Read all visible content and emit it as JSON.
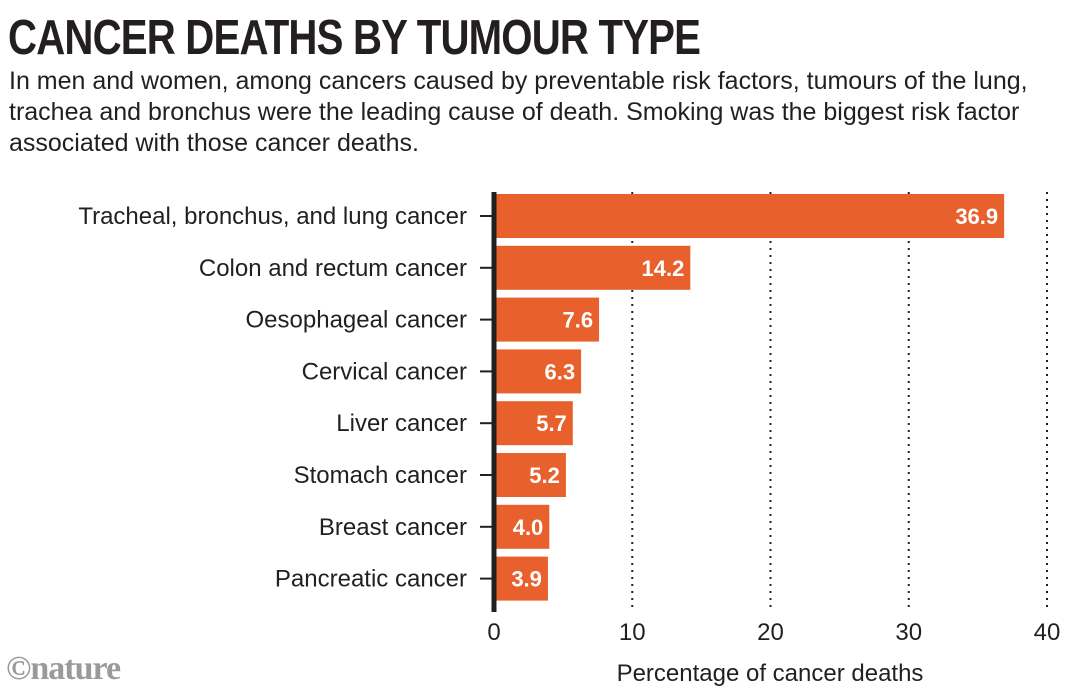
{
  "chart_data": {
    "type": "bar",
    "orientation": "horizontal",
    "title": "CANCER DEATHS BY TUMOUR TYPE",
    "subtitle": "In men and women, among cancers caused by preventable risk factors, tumours of the lung, trachea and bronchus were the leading cause of death. Smoking was the biggest risk factor associated with those cancer deaths.",
    "categories": [
      "Tracheal, bronchus, and lung cancer",
      "Colon and rectum cancer",
      "Oesophageal cancer",
      "Cervical cancer",
      "Liver cancer",
      "Stomach cancer",
      "Breast cancer",
      "Pancreatic cancer"
    ],
    "values": [
      36.9,
      14.2,
      7.6,
      6.3,
      5.7,
      5.2,
      4.0,
      3.9
    ],
    "value_labels": [
      "36.9",
      "14.2",
      "7.6",
      "6.3",
      "5.7",
      "5.2",
      "4.0",
      "3.9"
    ],
    "xlabel": "Percentage of cancer deaths",
    "ylabel": "",
    "xlim": [
      0,
      40
    ],
    "xticks": [
      0,
      10,
      20,
      30,
      40
    ],
    "xtick_labels": [
      "0",
      "10",
      "20",
      "30",
      "40"
    ],
    "grid": "vertical dotted",
    "bar_color": "#e8602c",
    "axis_color": "#231f20",
    "grid_color": "#231f20"
  },
  "logo": {
    "text": "©nature",
    "color": "#9a9a9a"
  }
}
